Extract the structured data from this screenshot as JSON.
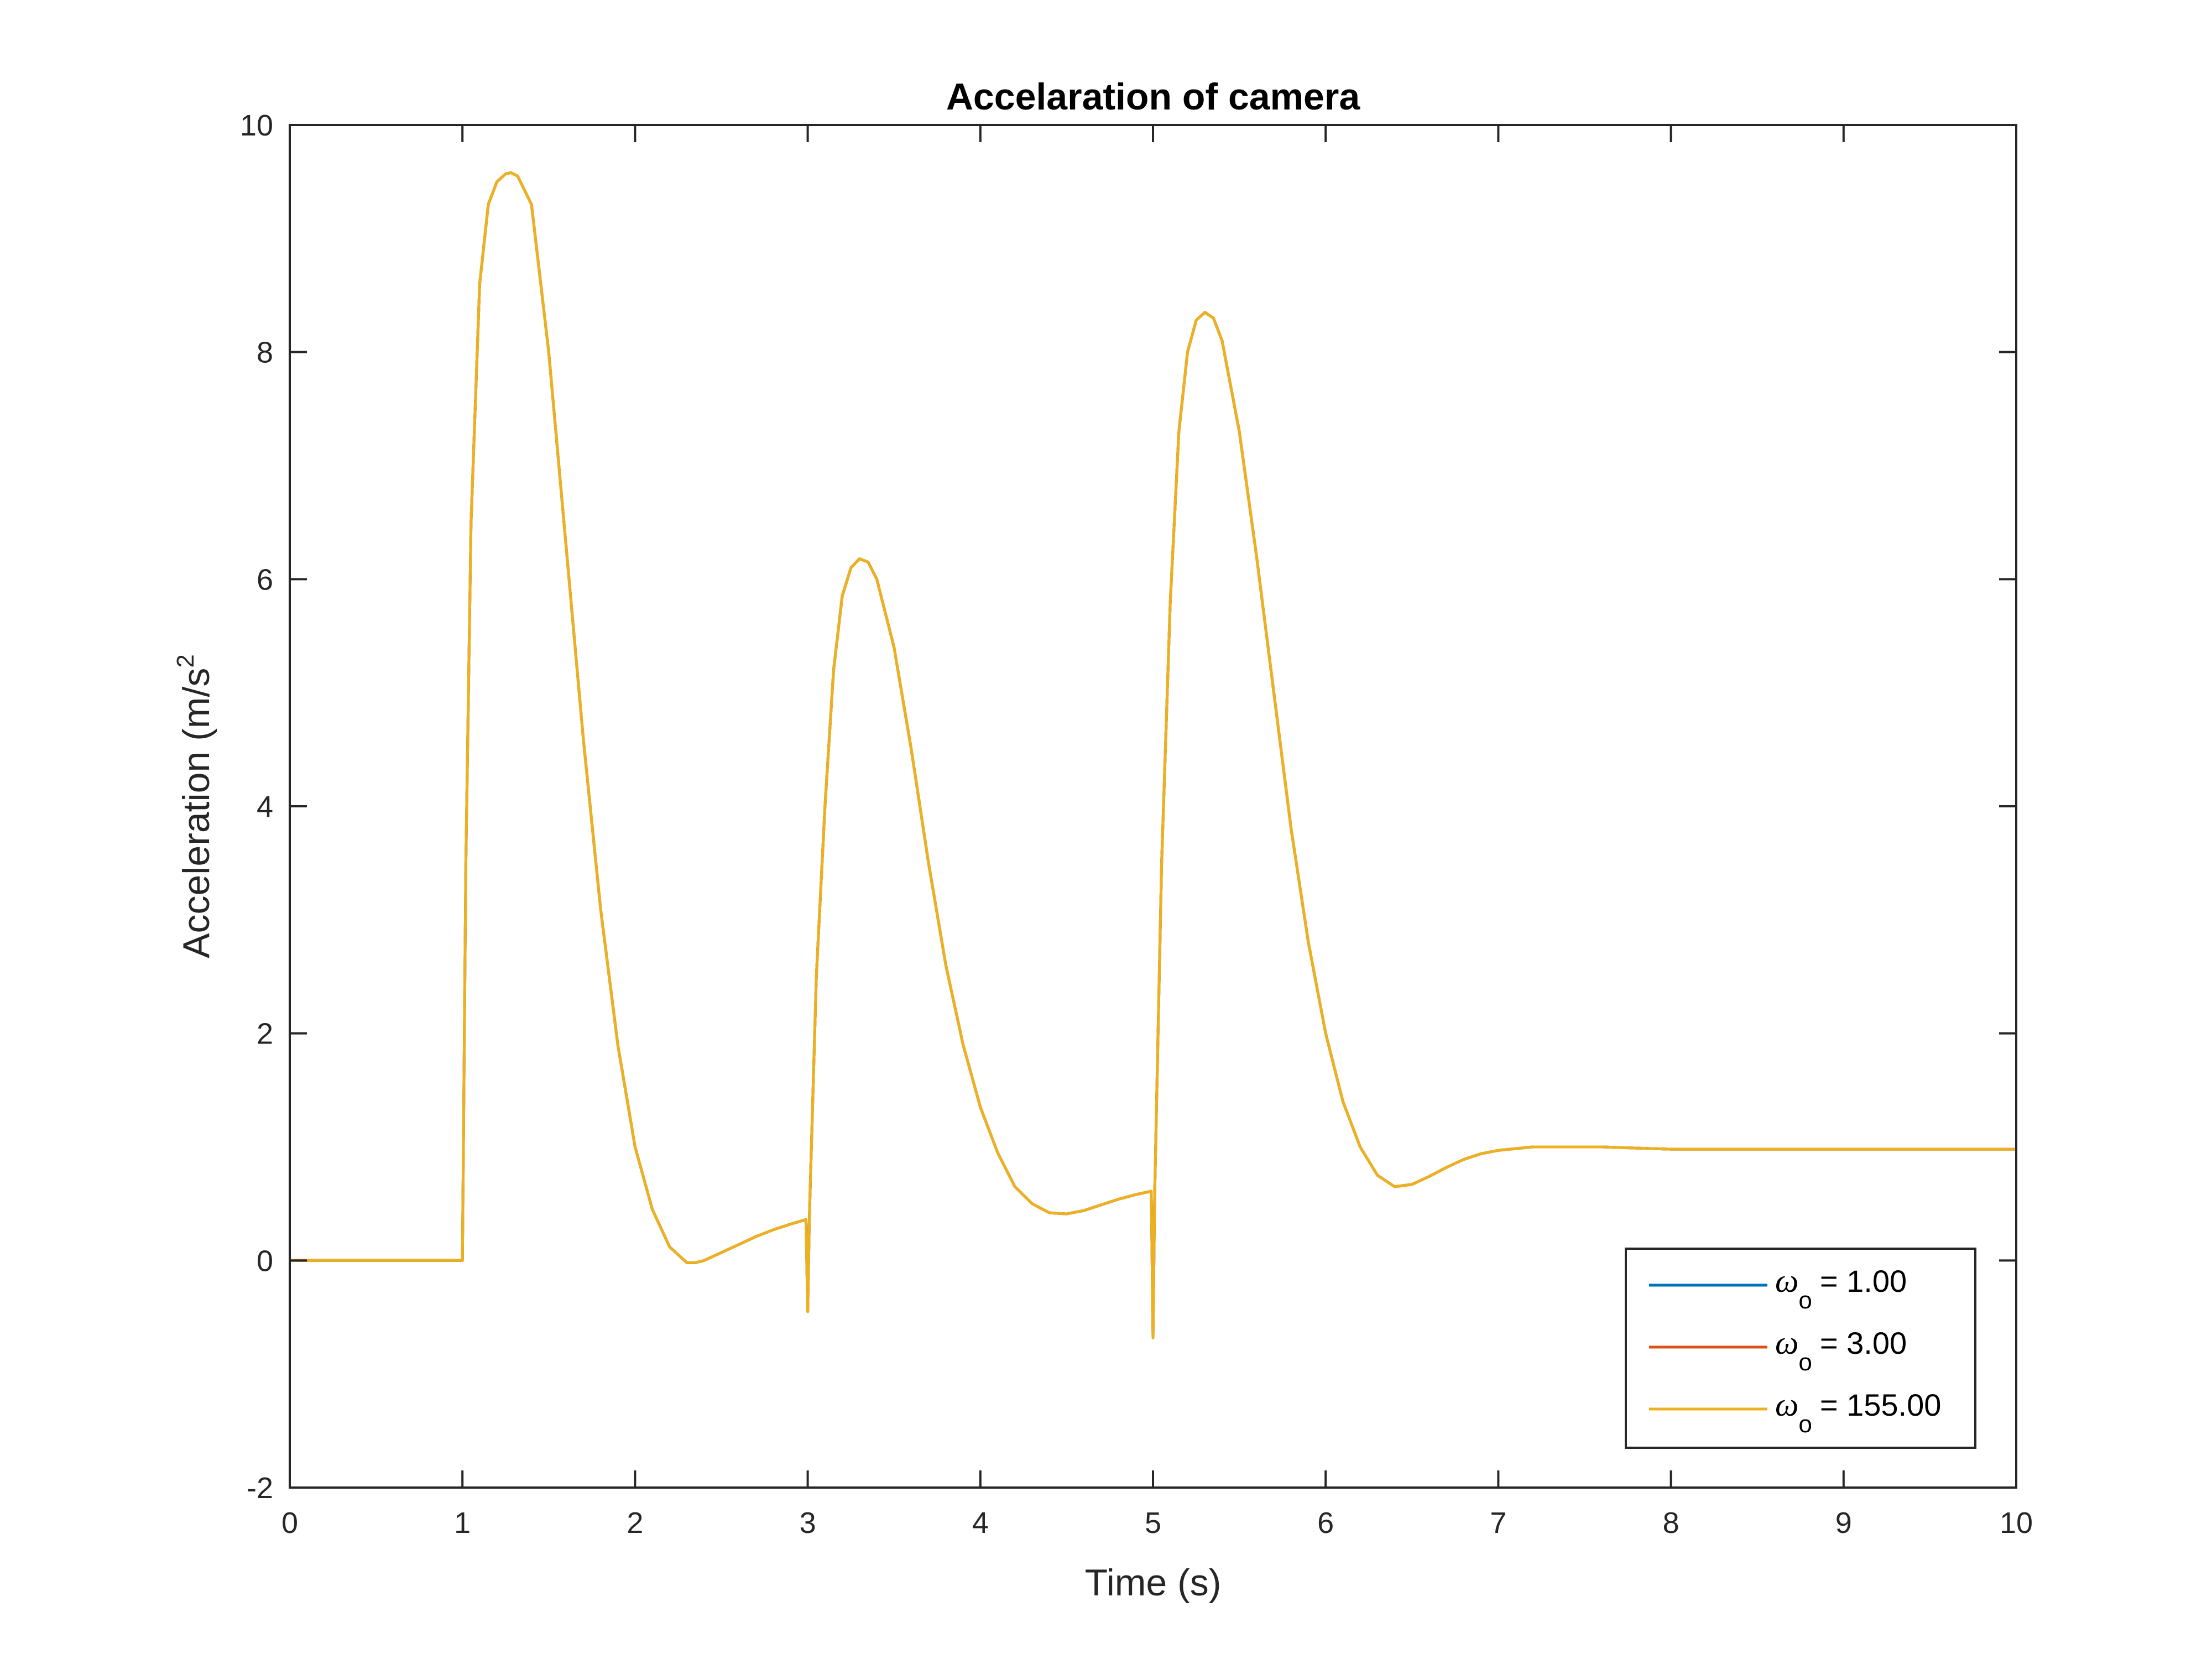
{
  "chart_data": {
    "type": "line",
    "title": "Accelaration of camera",
    "xlabel": "Time (s)",
    "ylabel": "Acceleration (m/s",
    "ylabel_superscript": "2",
    "xlim": [
      0,
      10
    ],
    "ylim": [
      -2,
      10
    ],
    "xticks": [
      "0",
      "1",
      "2",
      "3",
      "4",
      "5",
      "6",
      "7",
      "8",
      "9",
      "10"
    ],
    "yticks": [
      "-2",
      "0",
      "2",
      "4",
      "6",
      "8",
      "10"
    ],
    "grid": false,
    "legend_position": "bottom-right",
    "series": [
      {
        "name": "= 1.00",
        "legend_symbol": "ω",
        "legend_subscript": "o",
        "color": "#0072BD",
        "x": [
          0,
          0.5,
          0.99,
          1.0,
          1.02,
          1.05,
          1.1,
          1.15,
          1.2,
          1.25,
          1.28,
          1.32,
          1.4,
          1.5,
          1.6,
          1.7,
          1.8,
          1.9,
          2.0,
          2.1,
          2.2,
          2.3,
          2.35,
          2.4,
          2.5,
          2.6,
          2.7,
          2.8,
          2.9,
          2.99,
          3.0,
          3.01,
          3.05,
          3.1,
          3.15,
          3.2,
          3.25,
          3.3,
          3.35,
          3.4,
          3.5,
          3.6,
          3.7,
          3.8,
          3.9,
          4.0,
          4.1,
          4.2,
          4.3,
          4.4,
          4.5,
          4.6,
          4.7,
          4.8,
          4.9,
          4.99,
          5.0,
          5.01,
          5.05,
          5.1,
          5.15,
          5.2,
          5.25,
          5.3,
          5.35,
          5.4,
          5.5,
          5.6,
          5.7,
          5.8,
          5.9,
          6.0,
          6.1,
          6.2,
          6.3,
          6.4,
          6.5,
          6.6,
          6.7,
          6.8,
          6.9,
          7.0,
          7.2,
          7.4,
          7.6,
          7.8,
          8.0,
          8.5,
          9.0,
          9.5,
          10.0
        ],
        "y": [
          0,
          0,
          0,
          0.0,
          3.5,
          6.5,
          8.6,
          9.3,
          9.5,
          9.57,
          9.58,
          9.55,
          9.3,
          8.0,
          6.3,
          4.6,
          3.1,
          1.9,
          1.0,
          0.45,
          0.12,
          -0.02,
          -0.02,
          0.0,
          0.07,
          0.14,
          0.21,
          0.27,
          0.32,
          0.36,
          -0.45,
          0.4,
          2.5,
          4.0,
          5.2,
          5.85,
          6.1,
          6.18,
          6.15,
          6.0,
          5.4,
          4.5,
          3.5,
          2.6,
          1.9,
          1.35,
          0.95,
          0.65,
          0.5,
          0.42,
          0.41,
          0.44,
          0.49,
          0.54,
          0.58,
          0.61,
          -0.68,
          0.6,
          3.5,
          5.8,
          7.3,
          8.0,
          8.28,
          8.35,
          8.3,
          8.1,
          7.3,
          6.2,
          5.0,
          3.8,
          2.8,
          2.0,
          1.4,
          1.0,
          0.75,
          0.65,
          0.67,
          0.74,
          0.82,
          0.89,
          0.94,
          0.97,
          1.0,
          1.0,
          1.0,
          0.99,
          0.98,
          0.98,
          0.98,
          0.98,
          0.98
        ]
      },
      {
        "name": "= 3.00",
        "legend_symbol": "ω",
        "legend_subscript": "o",
        "color": "#D95319",
        "x": [
          0,
          0.5,
          0.99,
          1.0,
          1.02,
          1.05,
          1.1,
          1.15,
          1.2,
          1.25,
          1.28,
          1.32,
          1.4,
          1.5,
          1.6,
          1.7,
          1.8,
          1.9,
          2.0,
          2.1,
          2.2,
          2.3,
          2.35,
          2.4,
          2.5,
          2.6,
          2.7,
          2.8,
          2.9,
          2.99,
          3.0,
          3.01,
          3.05,
          3.1,
          3.15,
          3.2,
          3.25,
          3.3,
          3.35,
          3.4,
          3.5,
          3.6,
          3.7,
          3.8,
          3.9,
          4.0,
          4.1,
          4.2,
          4.3,
          4.4,
          4.5,
          4.6,
          4.7,
          4.8,
          4.9,
          4.99,
          5.0,
          5.01,
          5.05,
          5.1,
          5.15,
          5.2,
          5.25,
          5.3,
          5.35,
          5.4,
          5.5,
          5.6,
          5.7,
          5.8,
          5.9,
          6.0,
          6.1,
          6.2,
          6.3,
          6.4,
          6.5,
          6.6,
          6.7,
          6.8,
          6.9,
          7.0,
          7.2,
          7.4,
          7.6,
          7.8,
          8.0,
          8.5,
          9.0,
          9.5,
          10.0
        ],
        "y": [
          0,
          0,
          0,
          0.0,
          3.5,
          6.5,
          8.6,
          9.3,
          9.5,
          9.57,
          9.58,
          9.55,
          9.3,
          8.0,
          6.3,
          4.6,
          3.1,
          1.9,
          1.0,
          0.45,
          0.12,
          -0.02,
          -0.02,
          0.0,
          0.07,
          0.14,
          0.21,
          0.27,
          0.32,
          0.36,
          -0.45,
          0.4,
          2.5,
          4.0,
          5.2,
          5.85,
          6.1,
          6.18,
          6.15,
          6.0,
          5.4,
          4.5,
          3.5,
          2.6,
          1.9,
          1.35,
          0.95,
          0.65,
          0.5,
          0.42,
          0.41,
          0.44,
          0.49,
          0.54,
          0.58,
          0.61,
          -0.68,
          0.6,
          3.5,
          5.8,
          7.3,
          8.0,
          8.28,
          8.35,
          8.3,
          8.1,
          7.3,
          6.2,
          5.0,
          3.8,
          2.8,
          2.0,
          1.4,
          1.0,
          0.75,
          0.65,
          0.67,
          0.74,
          0.82,
          0.89,
          0.94,
          0.97,
          1.0,
          1.0,
          1.0,
          0.99,
          0.98,
          0.98,
          0.98,
          0.98,
          0.98
        ]
      },
      {
        "name": "= 155.00",
        "legend_symbol": "ω",
        "legend_subscript": "o",
        "color": "#EDB120",
        "x": [
          0,
          0.5,
          0.99,
          1.0,
          1.02,
          1.05,
          1.1,
          1.15,
          1.2,
          1.25,
          1.28,
          1.32,
          1.4,
          1.5,
          1.6,
          1.7,
          1.8,
          1.9,
          2.0,
          2.1,
          2.2,
          2.3,
          2.35,
          2.4,
          2.5,
          2.6,
          2.7,
          2.8,
          2.9,
          2.99,
          3.0,
          3.01,
          3.05,
          3.1,
          3.15,
          3.2,
          3.25,
          3.3,
          3.35,
          3.4,
          3.5,
          3.6,
          3.7,
          3.8,
          3.9,
          4.0,
          4.1,
          4.2,
          4.3,
          4.4,
          4.5,
          4.6,
          4.7,
          4.8,
          4.9,
          4.99,
          5.0,
          5.01,
          5.05,
          5.1,
          5.15,
          5.2,
          5.25,
          5.3,
          5.35,
          5.4,
          5.5,
          5.6,
          5.7,
          5.8,
          5.9,
          6.0,
          6.1,
          6.2,
          6.3,
          6.4,
          6.5,
          6.6,
          6.7,
          6.8,
          6.9,
          7.0,
          7.2,
          7.4,
          7.6,
          7.8,
          8.0,
          8.5,
          9.0,
          9.5,
          10.0
        ],
        "y": [
          0,
          0,
          0,
          0.0,
          3.5,
          6.5,
          8.6,
          9.3,
          9.5,
          9.57,
          9.58,
          9.55,
          9.3,
          8.0,
          6.3,
          4.6,
          3.1,
          1.9,
          1.0,
          0.45,
          0.12,
          -0.02,
          -0.02,
          0.0,
          0.07,
          0.14,
          0.21,
          0.27,
          0.32,
          0.36,
          -0.45,
          0.4,
          2.5,
          4.0,
          5.2,
          5.85,
          6.1,
          6.18,
          6.15,
          6.0,
          5.4,
          4.5,
          3.5,
          2.6,
          1.9,
          1.35,
          0.95,
          0.65,
          0.5,
          0.42,
          0.41,
          0.44,
          0.49,
          0.54,
          0.58,
          0.61,
          -0.68,
          0.6,
          3.5,
          5.8,
          7.3,
          8.0,
          8.28,
          8.35,
          8.3,
          8.1,
          7.3,
          6.2,
          5.0,
          3.8,
          2.8,
          2.0,
          1.4,
          1.0,
          0.75,
          0.65,
          0.67,
          0.74,
          0.82,
          0.89,
          0.94,
          0.97,
          1.0,
          1.0,
          1.0,
          0.99,
          0.98,
          0.98,
          0.98,
          0.98,
          0.98
        ]
      }
    ]
  }
}
